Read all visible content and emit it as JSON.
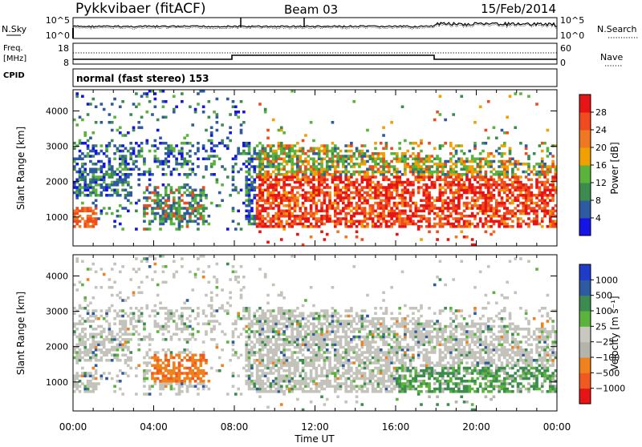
{
  "header": {
    "station": "Pykkvibaer (fitACF)",
    "beam": "Beam 03",
    "date": "15/Feb/2014",
    "cpid_label": "CPID",
    "cpid_value": "normal (fast stereo) 153"
  },
  "noise_panel": {
    "left_label": "N.Sky",
    "right_label": "N.Search",
    "left_ticks": [
      "10^5",
      "10^0"
    ],
    "right_ticks": [
      "10^5",
      "10^0"
    ]
  },
  "freq_panel": {
    "left_label_1": "Freq.",
    "left_label_2": "[MHz]",
    "right_label": "Nave",
    "left_ticks": [
      "18",
      "8"
    ],
    "right_ticks": [
      "60",
      "0"
    ]
  },
  "colors": {
    "power": [
      "#1414e6",
      "#2d5aa0",
      "#3c8c50",
      "#5ab43c",
      "#f0a000",
      "#f07820",
      "#f04a1e",
      "#e61414"
    ],
    "velocity": [
      "#e61414",
      "#f05a1e",
      "#f0821e",
      "#b4b4aa",
      "#c8c8c0",
      "#5ab43c",
      "#3c8c50",
      "#2d5aa0",
      "#1e3cc8"
    ],
    "scatter_grey": "#c3c3bb"
  },
  "chart_data": [
    {
      "type": "heatmap",
      "title": "",
      "xlabel": "",
      "ylabel": "Slant Range [km]",
      "x_ticks": [
        "00:00",
        "04:00",
        "08:00",
        "12:00",
        "16:00",
        "20:00",
        "00:00"
      ],
      "y_ticks": [
        1000,
        2000,
        3000,
        4000
      ],
      "ylim": [
        180,
        4600
      ],
      "xlim_hours": [
        0,
        24
      ],
      "colorbar_label": "Power [dB]",
      "colorbar_ticks": [
        4,
        8,
        12,
        16,
        20,
        24,
        28
      ],
      "colorbar_range": [
        0,
        32
      ]
    },
    {
      "type": "heatmap",
      "title": "",
      "xlabel": "Time UT",
      "ylabel": "Slant Range [km]",
      "x_ticks": [
        "00:00",
        "04:00",
        "08:00",
        "12:00",
        "16:00",
        "20:00",
        "00:00"
      ],
      "y_ticks": [
        1000,
        2000,
        3000,
        4000
      ],
      "ylim": [
        180,
        4600
      ],
      "xlim_hours": [
        0,
        24
      ],
      "colorbar_label": "Velocity [m s⁻¹]",
      "colorbar_ticks": [
        "1000",
        "500",
        "100",
        "25",
        "−25",
        "−100",
        "−500",
        "−1000"
      ]
    }
  ]
}
